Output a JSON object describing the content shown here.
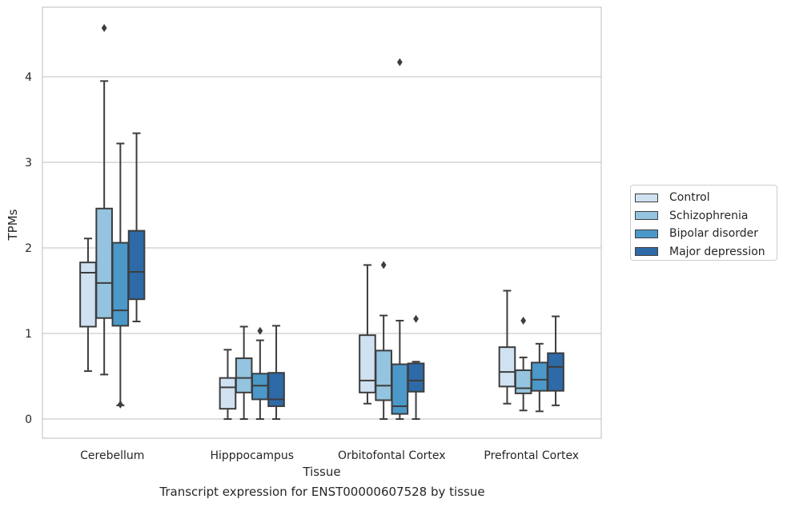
{
  "chart_data": {
    "type": "box",
    "title": "",
    "caption": "Transcript expression for ENST00000607528 by tissue",
    "xlabel": "Tissue",
    "ylabel": "TPMs",
    "ylim": [
      -0.22,
      4.8
    ],
    "yticks": [
      "0",
      "1",
      "2",
      "3",
      "4"
    ],
    "grid": "horizontal",
    "legend_position": "right",
    "categories": [
      "Cerebellum",
      "Hipppocampus",
      "Orbitofontal Cortex",
      "Prefrontal Cortex"
    ],
    "series": [
      {
        "name": "Control",
        "color": "#d0e1f2",
        "boxes": [
          {
            "whislo": 0.56,
            "q1": 1.08,
            "med": 1.71,
            "q3": 1.83,
            "whishi": 2.11,
            "fliers": []
          },
          {
            "whislo": 0.0,
            "q1": 0.12,
            "med": 0.37,
            "q3": 0.48,
            "whishi": 0.81,
            "fliers": []
          },
          {
            "whislo": 0.18,
            "q1": 0.31,
            "med": 0.45,
            "q3": 0.98,
            "whishi": 1.8,
            "fliers": []
          },
          {
            "whislo": 0.18,
            "q1": 0.38,
            "med": 0.55,
            "q3": 0.84,
            "whishi": 1.5,
            "fliers": []
          }
        ]
      },
      {
        "name": "Schizophrenia",
        "color": "#94c4df",
        "boxes": [
          {
            "whislo": 0.52,
            "q1": 1.18,
            "med": 1.59,
            "q3": 2.46,
            "whishi": 3.95,
            "fliers": [
              4.57
            ]
          },
          {
            "whislo": 0.0,
            "q1": 0.31,
            "med": 0.48,
            "q3": 0.71,
            "whishi": 1.08,
            "fliers": []
          },
          {
            "whislo": 0.0,
            "q1": 0.22,
            "med": 0.39,
            "q3": 0.8,
            "whishi": 1.21,
            "fliers": [
              1.8
            ]
          },
          {
            "whislo": 0.1,
            "q1": 0.3,
            "med": 0.36,
            "q3": 0.57,
            "whishi": 0.72,
            "fliers": [
              1.15
            ]
          }
        ]
      },
      {
        "name": "Bipolar disorder",
        "color": "#4b98c9",
        "boxes": [
          {
            "whislo": 0.16,
            "q1": 1.09,
            "med": 1.27,
            "q3": 2.06,
            "whishi": 3.22,
            "fliers": [
              0.17
            ]
          },
          {
            "whislo": 0.0,
            "q1": 0.23,
            "med": 0.39,
            "q3": 0.53,
            "whishi": 0.92,
            "fliers": [
              1.03
            ]
          },
          {
            "whislo": 0.0,
            "q1": 0.06,
            "med": 0.15,
            "q3": 0.64,
            "whishi": 1.15,
            "fliers": [
              4.17
            ]
          },
          {
            "whislo": 0.09,
            "q1": 0.33,
            "med": 0.46,
            "q3": 0.66,
            "whishi": 0.88,
            "fliers": []
          }
        ]
      },
      {
        "name": "Major depression",
        "color": "#2d6aa7",
        "boxes": [
          {
            "whislo": 1.14,
            "q1": 1.4,
            "med": 1.72,
            "q3": 2.2,
            "whishi": 3.34,
            "fliers": []
          },
          {
            "whislo": 0.0,
            "q1": 0.15,
            "med": 0.23,
            "q3": 0.54,
            "whishi": 1.09,
            "fliers": []
          },
          {
            "whislo": 0.0,
            "q1": 0.32,
            "med": 0.45,
            "q3": 0.65,
            "whishi": 0.67,
            "fliers": [
              1.17
            ]
          },
          {
            "whislo": 0.16,
            "q1": 0.33,
            "med": 0.61,
            "q3": 0.77,
            "whishi": 1.2,
            "fliers": []
          }
        ]
      }
    ]
  }
}
